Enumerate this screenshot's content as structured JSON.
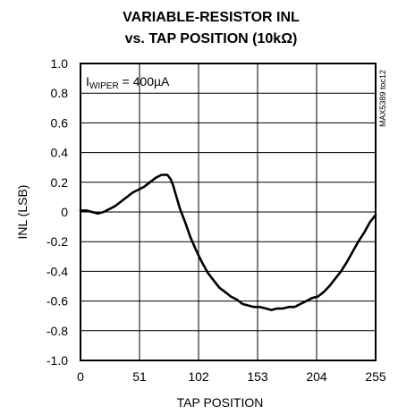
{
  "chart_data": {
    "type": "line",
    "title_line1": "VARIABLE-RESISTOR INL",
    "title_line2": "vs. TAP POSITION (10kΩ)",
    "xlabel": "TAP POSITION",
    "ylabel": "INL (LSB)",
    "annotation_main": "I",
    "annotation_sub": "WIPER",
    "annotation_value": " = 400µA",
    "figure_code": "MAX5389 toc12",
    "xlim": [
      0,
      255
    ],
    "ylim": [
      -1.0,
      1.0
    ],
    "x_ticks": [
      0,
      51,
      102,
      153,
      204,
      255
    ],
    "x_tick_labels": [
      "0",
      "51",
      "102",
      "153",
      "204",
      "255"
    ],
    "y_ticks": [
      1.0,
      0.8,
      0.6,
      0.4,
      0.2,
      0,
      -0.2,
      -0.4,
      -0.6,
      -0.8,
      -1.0
    ],
    "y_tick_labels": [
      "1.0",
      "0.8",
      "0.6",
      "0.4",
      "0.2",
      "0",
      "-0.2",
      "-0.4",
      "-0.6",
      "-0.8",
      "-1.0"
    ],
    "grid": true,
    "series": [
      {
        "color": "#000000",
        "x": [
          0,
          5,
          10,
          15,
          20,
          25,
          30,
          35,
          40,
          45,
          50,
          55,
          60,
          65,
          70,
          72,
          75,
          78,
          80,
          83,
          86,
          90,
          95,
          100,
          105,
          110,
          115,
          120,
          125,
          130,
          135,
          140,
          145,
          150,
          155,
          160,
          165,
          170,
          175,
          180,
          185,
          190,
          195,
          200,
          205,
          210,
          215,
          220,
          225,
          230,
          235,
          240,
          245,
          250,
          253,
          255
        ],
        "y": [
          0.01,
          0.01,
          0.0,
          -0.01,
          0.0,
          0.02,
          0.04,
          0.07,
          0.1,
          0.13,
          0.15,
          0.17,
          0.2,
          0.23,
          0.25,
          0.25,
          0.25,
          0.22,
          0.18,
          0.1,
          0.02,
          -0.06,
          -0.17,
          -0.26,
          -0.34,
          -0.41,
          -0.46,
          -0.51,
          -0.54,
          -0.57,
          -0.59,
          -0.62,
          -0.63,
          -0.64,
          -0.64,
          -0.65,
          -0.66,
          -0.65,
          -0.65,
          -0.64,
          -0.64,
          -0.62,
          -0.6,
          -0.58,
          -0.57,
          -0.54,
          -0.5,
          -0.45,
          -0.4,
          -0.34,
          -0.27,
          -0.2,
          -0.14,
          -0.07,
          -0.04,
          -0.02
        ]
      }
    ]
  }
}
